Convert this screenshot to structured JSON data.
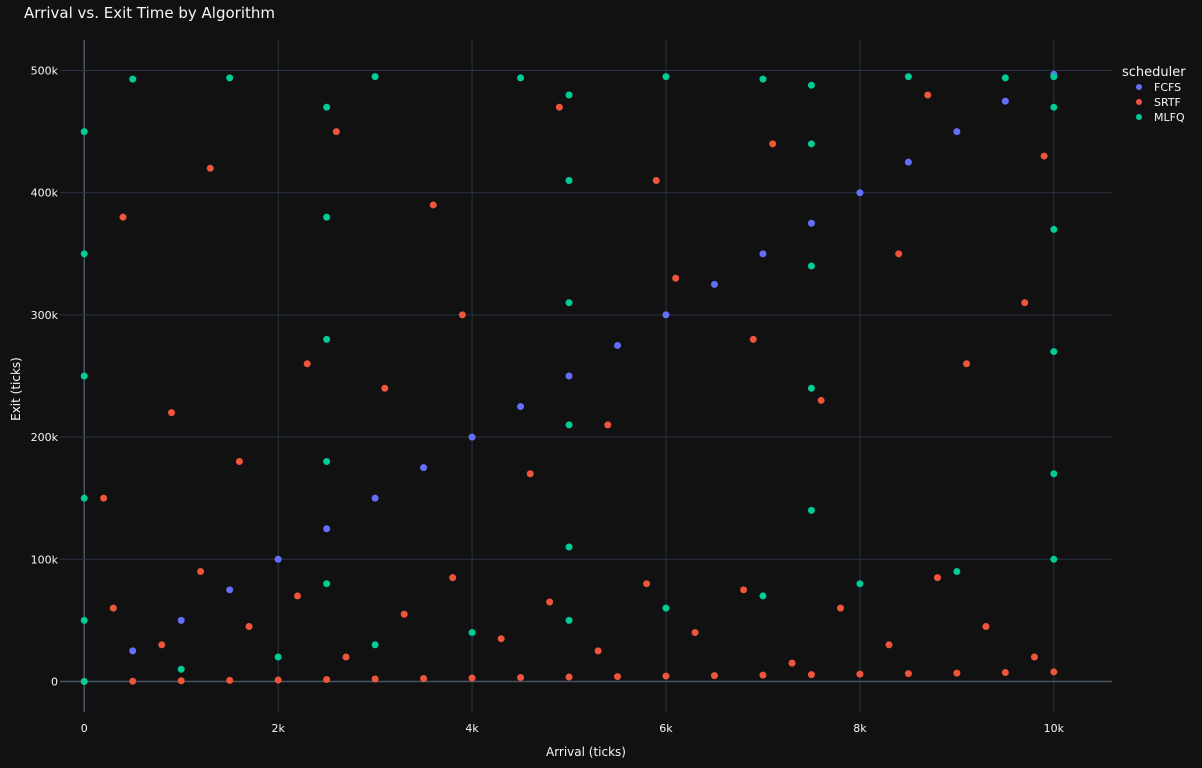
{
  "chart_data": {
    "type": "scatter",
    "title": "Arrival vs. Exit Time by Algorithm",
    "xlabel": "Arrival (ticks)",
    "ylabel": "Exit (ticks)",
    "xlim": [
      -250,
      10600
    ],
    "ylim": [
      -25000,
      525000
    ],
    "x_ticks": [
      {
        "value": 0,
        "label": "0"
      },
      {
        "value": 2000,
        "label": "2k"
      },
      {
        "value": 4000,
        "label": "4k"
      },
      {
        "value": 6000,
        "label": "6k"
      },
      {
        "value": 8000,
        "label": "8k"
      },
      {
        "value": 10000,
        "label": "10k"
      }
    ],
    "y_ticks": [
      {
        "value": 0,
        "label": "0"
      },
      {
        "value": 100000,
        "label": "100k"
      },
      {
        "value": 200000,
        "label": "200k"
      },
      {
        "value": 300000,
        "label": "300k"
      },
      {
        "value": 400000,
        "label": "400k"
      },
      {
        "value": 500000,
        "label": "500k"
      }
    ],
    "grid": true,
    "legend": {
      "title": "scheduler",
      "placement": "top-right"
    },
    "series": [
      {
        "name": "FCFS",
        "color": "#636efa",
        "points": [
          [
            0,
            0
          ],
          [
            500,
            25000
          ],
          [
            1000,
            50000
          ],
          [
            1500,
            75000
          ],
          [
            2000,
            100000
          ],
          [
            2500,
            125000
          ],
          [
            3000,
            150000
          ],
          [
            3500,
            175000
          ],
          [
            4000,
            200000
          ],
          [
            4500,
            225000
          ],
          [
            5000,
            250000
          ],
          [
            5500,
            275000
          ],
          [
            6000,
            300000
          ],
          [
            6500,
            325000
          ],
          [
            7000,
            350000
          ],
          [
            7500,
            375000
          ],
          [
            8000,
            400000
          ],
          [
            8500,
            425000
          ],
          [
            9000,
            450000
          ],
          [
            9500,
            475000
          ],
          [
            10000,
            497000
          ]
        ]
      },
      {
        "name": "SRTF",
        "color": "#ef553b",
        "points": [
          [
            0,
            0
          ],
          [
            500,
            200
          ],
          [
            1000,
            600
          ],
          [
            1500,
            900
          ],
          [
            2000,
            1200
          ],
          [
            2500,
            1600
          ],
          [
            3000,
            2000
          ],
          [
            3500,
            2400
          ],
          [
            4000,
            2800
          ],
          [
            4500,
            3200
          ],
          [
            5000,
            3600
          ],
          [
            5500,
            4000
          ],
          [
            6000,
            4400
          ],
          [
            6500,
            4800
          ],
          [
            7000,
            5200
          ],
          [
            7500,
            5600
          ],
          [
            8000,
            6000
          ],
          [
            8500,
            6400
          ],
          [
            9000,
            6800
          ],
          [
            9500,
            7300
          ],
          [
            10000,
            7800
          ],
          [
            300,
            60000
          ],
          [
            800,
            30000
          ],
          [
            1200,
            90000
          ],
          [
            1700,
            45000
          ],
          [
            2200,
            70000
          ],
          [
            2700,
            20000
          ],
          [
            3300,
            55000
          ],
          [
            3800,
            85000
          ],
          [
            4300,
            35000
          ],
          [
            4800,
            65000
          ],
          [
            5300,
            25000
          ],
          [
            5800,
            80000
          ],
          [
            6300,
            40000
          ],
          [
            6800,
            75000
          ],
          [
            7300,
            15000
          ],
          [
            7800,
            60000
          ],
          [
            8300,
            30000
          ],
          [
            8800,
            85000
          ],
          [
            9300,
            45000
          ],
          [
            9800,
            20000
          ],
          [
            200,
            150000
          ],
          [
            900,
            220000
          ],
          [
            1600,
            180000
          ],
          [
            2300,
            260000
          ],
          [
            3100,
            240000
          ],
          [
            3900,
            300000
          ],
          [
            4600,
            170000
          ],
          [
            5400,
            210000
          ],
          [
            6100,
            330000
          ],
          [
            6900,
            280000
          ],
          [
            7600,
            230000
          ],
          [
            8400,
            350000
          ],
          [
            9100,
            260000
          ],
          [
            9700,
            310000
          ],
          [
            400,
            380000
          ],
          [
            1300,
            420000
          ],
          [
            2600,
            450000
          ],
          [
            3600,
            390000
          ],
          [
            4900,
            470000
          ],
          [
            5900,
            410000
          ],
          [
            7100,
            440000
          ],
          [
            8700,
            480000
          ],
          [
            9900,
            430000
          ]
        ]
      },
      {
        "name": "MLFQ",
        "color": "#00cc96",
        "points": [
          [
            0,
            0
          ],
          [
            1000,
            10000
          ],
          [
            2000,
            20000
          ],
          [
            3000,
            30000
          ],
          [
            4000,
            40000
          ],
          [
            5000,
            50000
          ],
          [
            6000,
            60000
          ],
          [
            7000,
            70000
          ],
          [
            8000,
            80000
          ],
          [
            9000,
            90000
          ],
          [
            10000,
            100000
          ],
          [
            0,
            50000
          ],
          [
            2500,
            80000
          ],
          [
            5000,
            110000
          ],
          [
            7500,
            140000
          ],
          [
            10000,
            170000
          ],
          [
            0,
            150000
          ],
          [
            2500,
            180000
          ],
          [
            5000,
            210000
          ],
          [
            7500,
            240000
          ],
          [
            10000,
            270000
          ],
          [
            0,
            250000
          ],
          [
            2500,
            280000
          ],
          [
            5000,
            310000
          ],
          [
            7500,
            340000
          ],
          [
            10000,
            370000
          ],
          [
            0,
            350000
          ],
          [
            2500,
            380000
          ],
          [
            5000,
            410000
          ],
          [
            7500,
            440000
          ],
          [
            10000,
            470000
          ],
          [
            0,
            450000
          ],
          [
            2500,
            470000
          ],
          [
            5000,
            480000
          ],
          [
            7500,
            488000
          ],
          [
            10000,
            495000
          ],
          [
            500,
            493000
          ],
          [
            1500,
            494000
          ],
          [
            3000,
            495000
          ],
          [
            4500,
            494000
          ],
          [
            6000,
            495000
          ],
          [
            7000,
            493000
          ],
          [
            8500,
            495000
          ],
          [
            9500,
            494000
          ]
        ]
      }
    ]
  }
}
